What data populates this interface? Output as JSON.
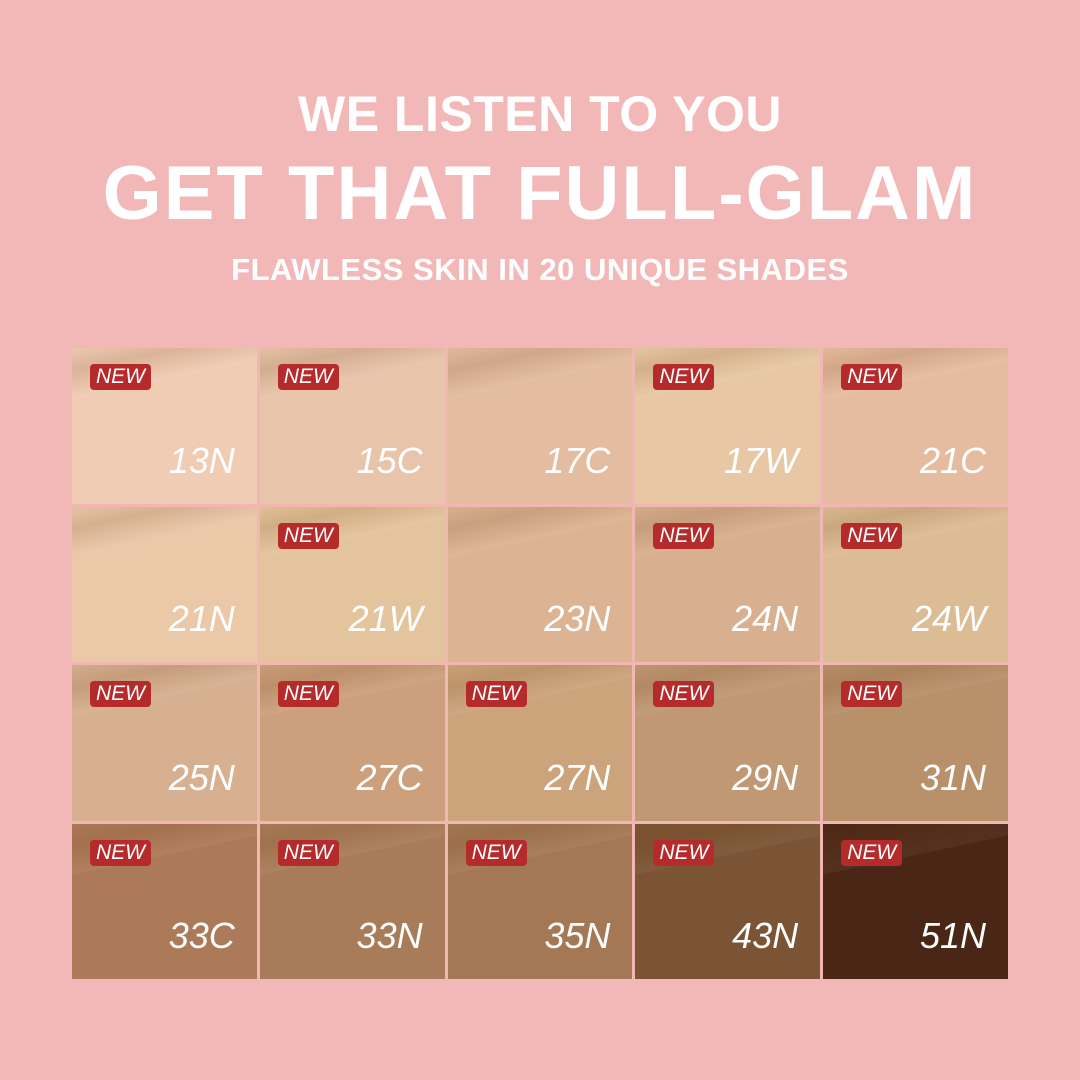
{
  "headline": {
    "line1": "WE LISTEN TO YOU",
    "line2": "GET THAT FULL-GLAM",
    "line3": "FLAWLESS SKIN IN 20 UNIQUE SHADES"
  },
  "badge_label": "NEW",
  "badge_color": "#b52a2a",
  "shades": [
    {
      "code": "13N",
      "new": true,
      "color": "#f0ccb4"
    },
    {
      "code": "15C",
      "new": true,
      "color": "#e8c4aa"
    },
    {
      "code": "17C",
      "new": false,
      "color": "#e4bca0"
    },
    {
      "code": "17W",
      "new": true,
      "color": "#e8c8a4"
    },
    {
      "code": "21C",
      "new": true,
      "color": "#e6bca0"
    },
    {
      "code": "21N",
      "new": false,
      "color": "#eac8a8"
    },
    {
      "code": "21W",
      "new": true,
      "color": "#e4c49c"
    },
    {
      "code": "23N",
      "new": false,
      "color": "#dcb494"
    },
    {
      "code": "24N",
      "new": true,
      "color": "#d8b090"
    },
    {
      "code": "24W",
      "new": true,
      "color": "#dcbc94"
    },
    {
      "code": "25N",
      "new": true,
      "color": "#d6b090"
    },
    {
      "code": "27C",
      "new": true,
      "color": "#cca07c"
    },
    {
      "code": "27N",
      "new": true,
      "color": "#cca47c"
    },
    {
      "code": "29N",
      "new": true,
      "color": "#c09874"
    },
    {
      "code": "31N",
      "new": true,
      "color": "#b8906a"
    },
    {
      "code": "33C",
      "new": true,
      "color": "#ac7a58"
    },
    {
      "code": "33N",
      "new": true,
      "color": "#a87c58"
    },
    {
      "code": "35N",
      "new": true,
      "color": "#a47854"
    },
    {
      "code": "43N",
      "new": true,
      "color": "#7a5434"
    },
    {
      "code": "51N",
      "new": true,
      "color": "#4a2616"
    }
  ]
}
